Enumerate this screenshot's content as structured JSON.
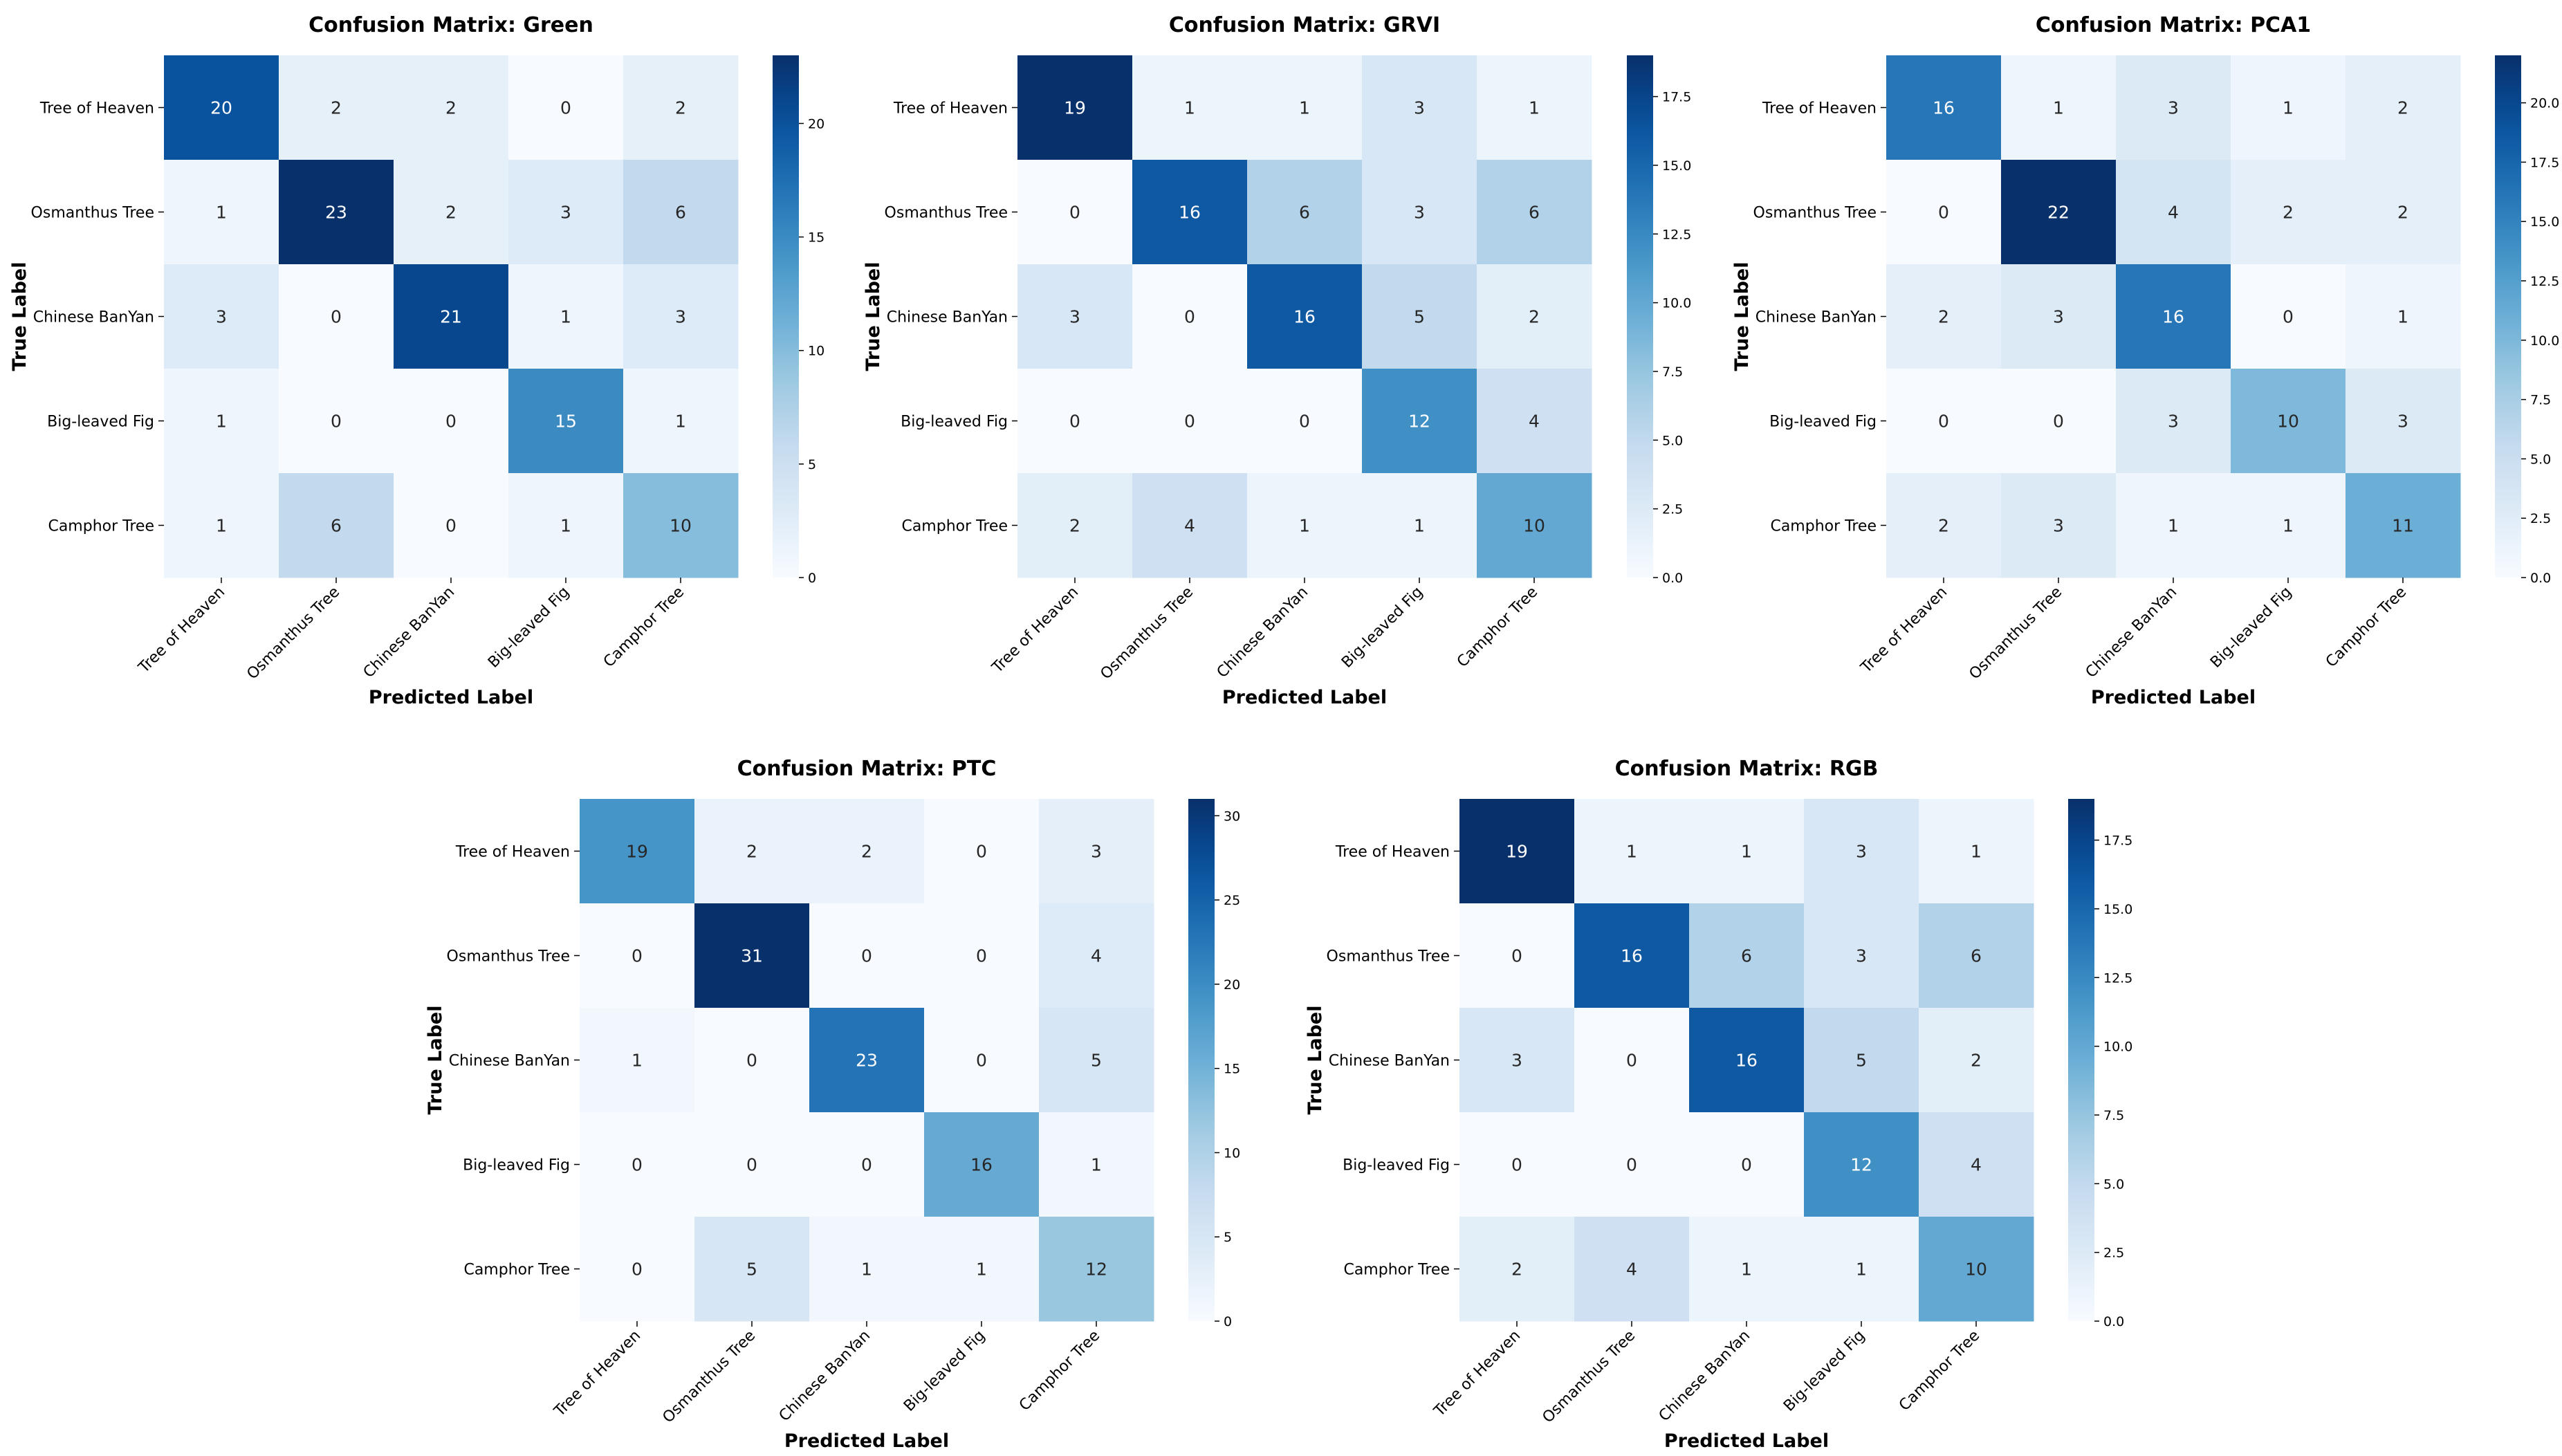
{
  "chart_data": [
    {
      "type": "heatmap",
      "title": "Confusion Matrix: Green",
      "xlabel": "Predicted Label",
      "ylabel": "True Label",
      "x_categories": [
        "Tree of Heaven",
        "Osmanthus Tree",
        "Chinese BanYan",
        "Big-leaved Fig",
        "Camphor Tree"
      ],
      "y_categories": [
        "Tree of Heaven",
        "Osmanthus Tree",
        "Chinese BanYan",
        "Big-leaved Fig",
        "Camphor Tree"
      ],
      "values": [
        [
          20,
          2,
          2,
          0,
          2
        ],
        [
          1,
          23,
          2,
          3,
          6
        ],
        [
          3,
          0,
          21,
          1,
          3
        ],
        [
          1,
          0,
          0,
          15,
          1
        ],
        [
          1,
          6,
          0,
          1,
          10
        ]
      ],
      "colorbar": {
        "min": 0,
        "max": 23,
        "ticks": [
          "0",
          "5",
          "10",
          "15",
          "20"
        ]
      },
      "colormap": "Blues"
    },
    {
      "type": "heatmap",
      "title": "Confusion Matrix: GRVI",
      "xlabel": "Predicted Label",
      "ylabel": "True Label",
      "x_categories": [
        "Tree of Heaven",
        "Osmanthus Tree",
        "Chinese BanYan",
        "Big-leaved Fig",
        "Camphor Tree"
      ],
      "y_categories": [
        "Tree of Heaven",
        "Osmanthus Tree",
        "Chinese BanYan",
        "Big-leaved Fig",
        "Camphor Tree"
      ],
      "values": [
        [
          19,
          1,
          1,
          3,
          1
        ],
        [
          0,
          16,
          6,
          3,
          6
        ],
        [
          3,
          0,
          16,
          5,
          2
        ],
        [
          0,
          0,
          0,
          12,
          4
        ],
        [
          2,
          4,
          1,
          1,
          10
        ]
      ],
      "colorbar": {
        "min": 0,
        "max": 19,
        "ticks": [
          "0.0",
          "2.5",
          "5.0",
          "7.5",
          "10.0",
          "12.5",
          "15.0",
          "17.5"
        ]
      },
      "colormap": "Blues"
    },
    {
      "type": "heatmap",
      "title": "Confusion Matrix: PCA1",
      "xlabel": "Predicted Label",
      "ylabel": "True Label",
      "x_categories": [
        "Tree of Heaven",
        "Osmanthus Tree",
        "Chinese BanYan",
        "Big-leaved Fig",
        "Camphor Tree"
      ],
      "y_categories": [
        "Tree of Heaven",
        "Osmanthus Tree",
        "Chinese BanYan",
        "Big-leaved Fig",
        "Camphor Tree"
      ],
      "values": [
        [
          16,
          1,
          3,
          1,
          2
        ],
        [
          0,
          22,
          4,
          2,
          2
        ],
        [
          2,
          3,
          16,
          0,
          1
        ],
        [
          0,
          0,
          3,
          10,
          3
        ],
        [
          2,
          3,
          1,
          1,
          11
        ]
      ],
      "colorbar": {
        "min": 0,
        "max": 22,
        "ticks": [
          "0.0",
          "2.5",
          "5.0",
          "7.5",
          "10.0",
          "12.5",
          "15.0",
          "17.5",
          "20.0"
        ]
      },
      "colormap": "Blues"
    },
    {
      "type": "heatmap",
      "title": "Confusion Matrix: PTC",
      "xlabel": "Predicted Label",
      "ylabel": "True Label",
      "x_categories": [
        "Tree of Heaven",
        "Osmanthus Tree",
        "Chinese BanYan",
        "Big-leaved Fig",
        "Camphor Tree"
      ],
      "y_categories": [
        "Tree of Heaven",
        "Osmanthus Tree",
        "Chinese BanYan",
        "Big-leaved Fig",
        "Camphor Tree"
      ],
      "values": [
        [
          19,
          2,
          2,
          0,
          3
        ],
        [
          0,
          31,
          0,
          0,
          4
        ],
        [
          1,
          0,
          23,
          0,
          5
        ],
        [
          0,
          0,
          0,
          16,
          1
        ],
        [
          0,
          5,
          1,
          1,
          12
        ]
      ],
      "colorbar": {
        "min": 0,
        "max": 31,
        "ticks": [
          "0",
          "5",
          "10",
          "15",
          "20",
          "25",
          "30"
        ]
      },
      "colormap": "Blues"
    },
    {
      "type": "heatmap",
      "title": "Confusion Matrix: RGB",
      "xlabel": "Predicted Label",
      "ylabel": "True Label",
      "x_categories": [
        "Tree of Heaven",
        "Osmanthus Tree",
        "Chinese BanYan",
        "Big-leaved Fig",
        "Camphor Tree"
      ],
      "y_categories": [
        "Tree of Heaven",
        "Osmanthus Tree",
        "Chinese BanYan",
        "Big-leaved Fig",
        "Camphor Tree"
      ],
      "values": [
        [
          19,
          1,
          1,
          3,
          1
        ],
        [
          0,
          16,
          6,
          3,
          6
        ],
        [
          3,
          0,
          16,
          5,
          2
        ],
        [
          0,
          0,
          0,
          12,
          4
        ],
        [
          2,
          4,
          1,
          1,
          10
        ]
      ],
      "colorbar": {
        "min": 0,
        "max": 19,
        "ticks": [
          "0.0",
          "2.5",
          "5.0",
          "7.5",
          "10.0",
          "12.5",
          "15.0",
          "17.5"
        ]
      },
      "colormap": "Blues"
    }
  ]
}
